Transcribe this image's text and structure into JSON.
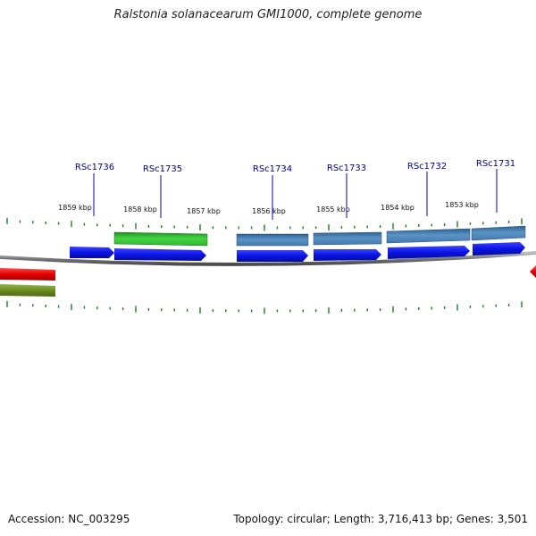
{
  "title": "Ralstonia solanacearum GMI1000, complete genome",
  "footer": {
    "accession": "Accession: NC_003295",
    "summary": "Topology: circular; Length: 3,716,413 bp; Genes: 3,501"
  },
  "colors": {
    "backbone": "#8a8a8a",
    "tick": "#1e7d1e",
    "gene_label": "#00008b",
    "cds_blue": "#0a14e6",
    "green_feature": "#33cc33",
    "steel_feature": "#4f86b8",
    "red_feature": "#e60000",
    "olive_feature": "#6b8e23"
  },
  "scale_labels": [
    "1859 kbp",
    "1858 kbp",
    "1857 kbp",
    "1856 kbp",
    "1855 kbp",
    "1854 kbp",
    "1853 kbp"
  ],
  "gene_labels": [
    "RSc1736",
    "RSc1735",
    "RSc1734",
    "RSc1733",
    "RSc1732",
    "RSc1731"
  ]
}
